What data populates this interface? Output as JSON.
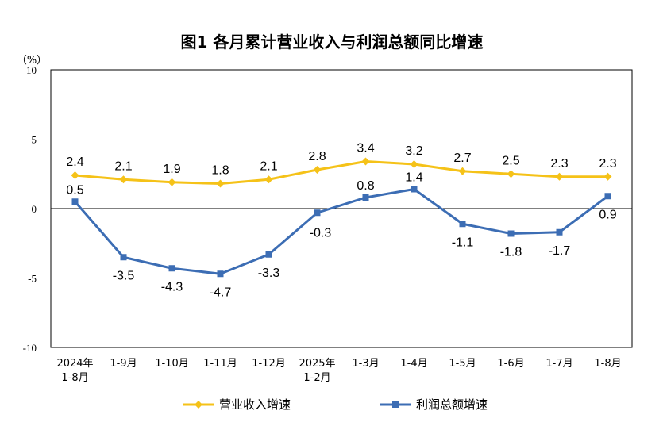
{
  "chart_data": {
    "type": "line",
    "title": "图1  各月累计营业收入与利润总额同比增速",
    "unit": "（%）",
    "categories": [
      [
        "2024年",
        "1-8月"
      ],
      [
        "1-9月"
      ],
      [
        "1-10月"
      ],
      [
        "1-11月"
      ],
      [
        "1-12月"
      ],
      [
        "2025年",
        "1-2月"
      ],
      [
        "1-3月"
      ],
      [
        "1-4月"
      ],
      [
        "1-5月"
      ],
      [
        "1-6月"
      ],
      [
        "1-7月"
      ],
      [
        "1-8月"
      ]
    ],
    "ylim": [
      -10,
      10
    ],
    "yticks": [
      "10",
      "5",
      "0",
      "-5",
      "-10"
    ],
    "ytick_values": [
      10,
      5,
      0,
      -5,
      -10
    ],
    "legend_position": "bottom",
    "series": [
      {
        "name": "营业收入增速",
        "color": "#F5C218",
        "marker": "diamond",
        "values": [
          2.4,
          2.1,
          1.9,
          1.8,
          2.1,
          2.8,
          3.4,
          3.2,
          2.7,
          2.5,
          2.3,
          2.3
        ],
        "labels": [
          "2.4",
          "2.1",
          "1.9",
          "1.8",
          "2.1",
          "2.8",
          "3.4",
          "3.2",
          "2.7",
          "2.5",
          "2.3",
          "2.3"
        ]
      },
      {
        "name": "利润总额增速",
        "color": "#3C6DB4",
        "marker": "square",
        "values": [
          0.5,
          -3.5,
          -4.3,
          -4.7,
          -3.3,
          -0.3,
          0.8,
          1.4,
          -1.1,
          -1.8,
          -1.7,
          0.9
        ],
        "labels": [
          "0.5",
          "-3.5",
          "-4.3",
          "-4.7",
          "-3.3",
          "-0.3",
          "0.8",
          "1.4",
          "-1.1",
          "-1.8",
          "-1.7",
          "0.9"
        ]
      }
    ]
  }
}
